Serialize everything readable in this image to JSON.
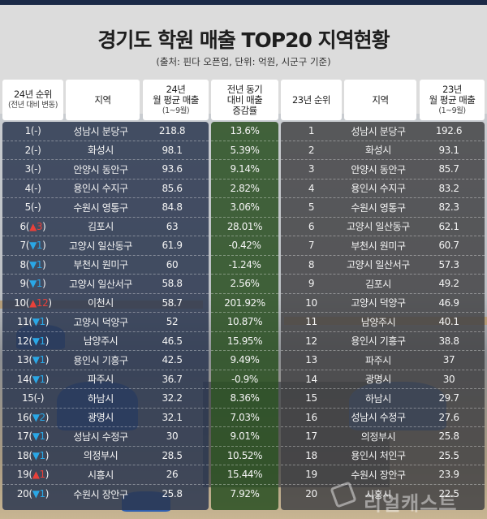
{
  "header": {
    "title": "경기도 학원 매출 TOP20 지역현황",
    "subtitle": "(출처: 핀다 오픈업, 단위: 억원, 시군구 기준)"
  },
  "columns": {
    "rank24": {
      "line1": "24년 순위",
      "line2": "(전년 대비 변동)"
    },
    "region24": {
      "line1": "지역"
    },
    "sales24": {
      "line1": "24년",
      "line2": "월 평균 매출",
      "line3": "(1~9월)"
    },
    "growth": {
      "line1": "전년 동기",
      "line2": "대비 매출",
      "line3": "증감률"
    },
    "rank23": {
      "line1": "23년 순위"
    },
    "region23": {
      "line1": "지역"
    },
    "sales23": {
      "line1": "23년",
      "line2": "월 평균 매출",
      "line3": "(1~9월)"
    }
  },
  "colors": {
    "topbar": "#1b2a47",
    "panel_2024": "#2c3850",
    "panel_growth": "#2e5226",
    "panel_2023": "#424244",
    "up_arrow": "#e8413a",
    "down_arrow": "#2aa7e6"
  },
  "watermark": "리얼캐스트",
  "rows": [
    {
      "rank": "1",
      "change_dir": "none",
      "change_arrow": "",
      "change_val": "-",
      "region": "성남시 분당구",
      "sales": "218.8",
      "growth": "13.6%",
      "rank23": "1",
      "region23": "성남시 분당구",
      "sales23": "192.6"
    },
    {
      "rank": "2",
      "change_dir": "none",
      "change_arrow": "",
      "change_val": "-",
      "region": "화성시",
      "sales": "98.1",
      "growth": "5.39%",
      "rank23": "2",
      "region23": "화성시",
      "sales23": "93.1"
    },
    {
      "rank": "3",
      "change_dir": "none",
      "change_arrow": "",
      "change_val": "-",
      "region": "안양시 동안구",
      "sales": "93.6",
      "growth": "9.14%",
      "rank23": "3",
      "region23": "안양시 동안구",
      "sales23": "85.7"
    },
    {
      "rank": "4",
      "change_dir": "none",
      "change_arrow": "",
      "change_val": "-",
      "region": "용인시 수지구",
      "sales": "85.6",
      "growth": "2.82%",
      "rank23": "4",
      "region23": "용인시 수지구",
      "sales23": "83.2"
    },
    {
      "rank": "5",
      "change_dir": "none",
      "change_arrow": "",
      "change_val": "-",
      "region": "수원시 영통구",
      "sales": "84.8",
      "growth": "3.06%",
      "rank23": "5",
      "region23": "수원시 영통구",
      "sales23": "82.3"
    },
    {
      "rank": "6",
      "change_dir": "up",
      "change_arrow": "▲",
      "change_val": "3",
      "region": "김포시",
      "sales": "63",
      "growth": "28.01%",
      "rank23": "6",
      "region23": "고양시 일산동구",
      "sales23": "62.1"
    },
    {
      "rank": "7",
      "change_dir": "down",
      "change_arrow": "▼",
      "change_val": "1",
      "region": "고양시 일산동구",
      "sales": "61.9",
      "growth": "-0.42%",
      "rank23": "7",
      "region23": "부천시 원미구",
      "sales23": "60.7"
    },
    {
      "rank": "8",
      "change_dir": "down",
      "change_arrow": "▼",
      "change_val": "1",
      "region": "부천시 원미구",
      "sales": "60",
      "growth": "-1.24%",
      "rank23": "8",
      "region23": "고양시 일산서구",
      "sales23": "57.3"
    },
    {
      "rank": "9",
      "change_dir": "down",
      "change_arrow": "▼",
      "change_val": "1",
      "region": "고양시 일산서구",
      "sales": "58.8",
      "growth": "2.56%",
      "rank23": "9",
      "region23": "김포시",
      "sales23": "49.2"
    },
    {
      "rank": "10",
      "change_dir": "up",
      "change_arrow": "▲",
      "change_val": "12",
      "region": "이천시",
      "sales": "58.7",
      "growth": "201.92%",
      "rank23": "10",
      "region23": "고양시 덕양구",
      "sales23": "46.9"
    },
    {
      "rank": "11",
      "change_dir": "down",
      "change_arrow": "▼",
      "change_val": "1",
      "region": "고양시 덕양구",
      "sales": "52",
      "growth": "10.87%",
      "rank23": "11",
      "region23": "남양주시",
      "sales23": "40.1"
    },
    {
      "rank": "12",
      "change_dir": "down",
      "change_arrow": "▼",
      "change_val": "1",
      "region": "남양주시",
      "sales": "46.5",
      "growth": "15.95%",
      "rank23": "12",
      "region23": "용인시 기흥구",
      "sales23": "38.8"
    },
    {
      "rank": "13",
      "change_dir": "down",
      "change_arrow": "▼",
      "change_val": "1",
      "region": "용인시 기흥구",
      "sales": "42.5",
      "growth": "9.49%",
      "rank23": "13",
      "region23": "파주시",
      "sales23": "37"
    },
    {
      "rank": "14",
      "change_dir": "down",
      "change_arrow": "▼",
      "change_val": "1",
      "region": "파주시",
      "sales": "36.7",
      "growth": "-0.9%",
      "rank23": "14",
      "region23": "광명시",
      "sales23": "30"
    },
    {
      "rank": "15",
      "change_dir": "none",
      "change_arrow": "",
      "change_val": "-",
      "region": "하남시",
      "sales": "32.2",
      "growth": "8.36%",
      "rank23": "15",
      "region23": "하남시",
      "sales23": "29.7"
    },
    {
      "rank": "16",
      "change_dir": "down",
      "change_arrow": "▼",
      "change_val": "2",
      "region": "광명시",
      "sales": "32.1",
      "growth": "7.03%",
      "rank23": "16",
      "region23": "성남시 수정구",
      "sales23": "27.6"
    },
    {
      "rank": "17",
      "change_dir": "down",
      "change_arrow": "▼",
      "change_val": "1",
      "region": "성남시 수정구",
      "sales": "30",
      "growth": "9.01%",
      "rank23": "17",
      "region23": "의정부시",
      "sales23": "25.8"
    },
    {
      "rank": "18",
      "change_dir": "down",
      "change_arrow": "▼",
      "change_val": "1",
      "region": "의정부시",
      "sales": "28.5",
      "growth": "10.52%",
      "rank23": "18",
      "region23": "용인시 처인구",
      "sales23": "25.5"
    },
    {
      "rank": "19",
      "change_dir": "up",
      "change_arrow": "▲",
      "change_val": "1",
      "region": "시흥시",
      "sales": "26",
      "growth": "15.44%",
      "rank23": "19",
      "region23": "수원시 장안구",
      "sales23": "23.9"
    },
    {
      "rank": "20",
      "change_dir": "down",
      "change_arrow": "▼",
      "change_val": "1",
      "region": "수원시 장안구",
      "sales": "25.8",
      "growth": "7.92%",
      "rank23": "20",
      "region23": "시흥시",
      "sales23": "22.5"
    }
  ],
  "chart_data": {
    "type": "table",
    "title": "경기도 학원 매출 TOP20 지역현황",
    "subtitle": "(출처: 핀다 오픈업, 단위: 억원, 시군구 기준)",
    "columns": [
      "24년 순위 (전년 대비 변동)",
      "지역",
      "24년 월 평균 매출 (1~9월)",
      "전년 동기 대비 매출 증감률",
      "23년 순위",
      "지역",
      "23년 월 평균 매출 (1~9월)"
    ],
    "rows": [
      [
        "1(-)",
        "성남시 분당구",
        218.8,
        "13.6%",
        1,
        "성남시 분당구",
        192.6
      ],
      [
        "2(-)",
        "화성시",
        98.1,
        "5.39%",
        2,
        "화성시",
        93.1
      ],
      [
        "3(-)",
        "안양시 동안구",
        93.6,
        "9.14%",
        3,
        "안양시 동안구",
        85.7
      ],
      [
        "4(-)",
        "용인시 수지구",
        85.6,
        "2.82%",
        4,
        "용인시 수지구",
        83.2
      ],
      [
        "5(-)",
        "수원시 영통구",
        84.8,
        "3.06%",
        5,
        "수원시 영통구",
        82.3
      ],
      [
        "6(▲3)",
        "김포시",
        63,
        "28.01%",
        6,
        "고양시 일산동구",
        62.1
      ],
      [
        "7(▼1)",
        "고양시 일산동구",
        61.9,
        "-0.42%",
        7,
        "부천시 원미구",
        60.7
      ],
      [
        "8(▼1)",
        "부천시 원미구",
        60,
        "-1.24%",
        8,
        "고양시 일산서구",
        57.3
      ],
      [
        "9(▼1)",
        "고양시 일산서구",
        58.8,
        "2.56%",
        9,
        "김포시",
        49.2
      ],
      [
        "10(▲12)",
        "이천시",
        58.7,
        "201.92%",
        10,
        "고양시 덕양구",
        46.9
      ],
      [
        "11(▼1)",
        "고양시 덕양구",
        52,
        "10.87%",
        11,
        "남양주시",
        40.1
      ],
      [
        "12(▼1)",
        "남양주시",
        46.5,
        "15.95%",
        12,
        "용인시 기흥구",
        38.8
      ],
      [
        "13(▼1)",
        "용인시 기흥구",
        42.5,
        "9.49%",
        13,
        "파주시",
        37
      ],
      [
        "14(▼1)",
        "파주시",
        36.7,
        "-0.9%",
        14,
        "광명시",
        30
      ],
      [
        "15(-)",
        "하남시",
        32.2,
        "8.36%",
        15,
        "하남시",
        29.7
      ],
      [
        "16(▼2)",
        "광명시",
        32.1,
        "7.03%",
        16,
        "성남시 수정구",
        27.6
      ],
      [
        "17(▼1)",
        "성남시 수정구",
        30,
        "9.01%",
        17,
        "의정부시",
        25.8
      ],
      [
        "18(▼1)",
        "의정부시",
        28.5,
        "10.52%",
        18,
        "용인시 처인구",
        25.5
      ],
      [
        "19(▲1)",
        "시흥시",
        26,
        "15.44%",
        19,
        "수원시 장안구",
        23.9
      ],
      [
        "20(▼1)",
        "수원시 장안구",
        25.8,
        "7.92%",
        20,
        "시흥시",
        22.5
      ]
    ]
  }
}
